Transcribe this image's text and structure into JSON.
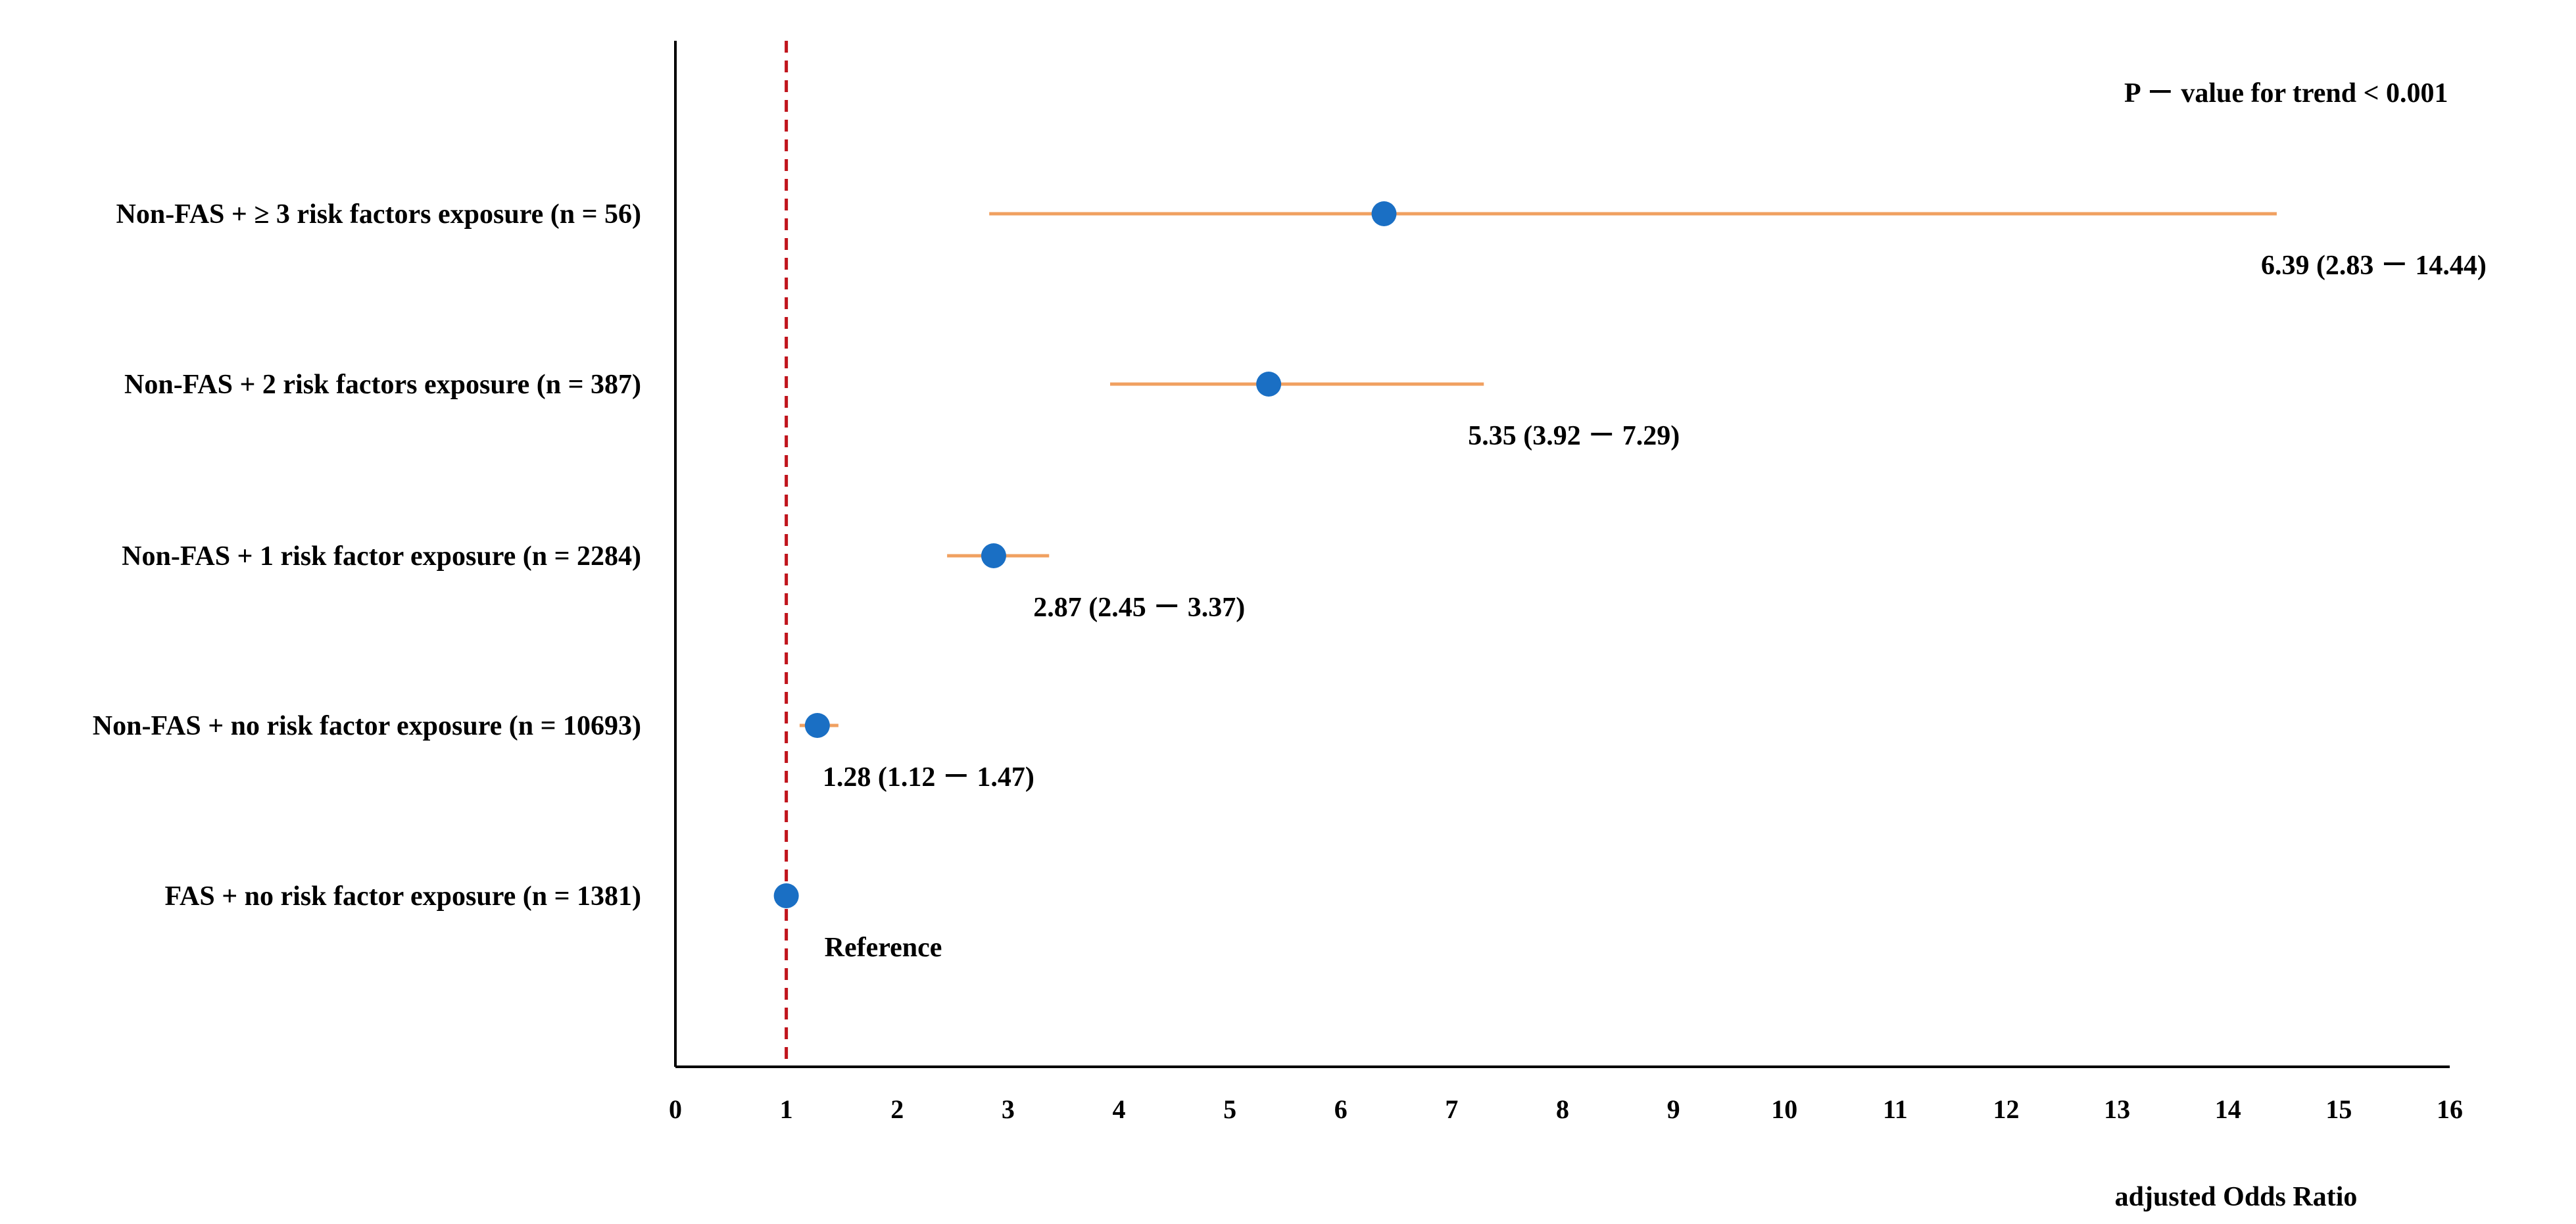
{
  "chart_data": {
    "type": "forest",
    "title": "",
    "xlabel": "adjusted Odds Ratio",
    "ylabel": "",
    "xlim": [
      0,
      16
    ],
    "xticks": [
      "0",
      "1",
      "2",
      "3",
      "4",
      "5",
      "6",
      "7",
      "8",
      "9",
      "10",
      "11",
      "12",
      "13",
      "14",
      "15",
      "16"
    ],
    "reference_line": 1,
    "reference_line_style": "dashed",
    "grid": false,
    "annotation": "P － value for trend < 0.001",
    "colors": {
      "point": "#1a6fc4",
      "ci": "#f0a060",
      "reference": "#c0141c",
      "axis": "#000000"
    },
    "rows": [
      {
        "label": "Non-FAS + ≥ 3 risk factors exposure (n = 56)",
        "or": 6.39,
        "lower": 2.83,
        "upper": 14.44,
        "text": "6.39 (2.83 － 14.44)"
      },
      {
        "label": "Non-FAS + 2 risk factors exposure (n = 387)",
        "or": 5.35,
        "lower": 3.92,
        "upper": 7.29,
        "text": "5.35 (3.92 － 7.29)"
      },
      {
        "label": "Non-FAS + 1 risk factor exposure (n = 2284)",
        "or": 2.87,
        "lower": 2.45,
        "upper": 3.37,
        "text": "2.87 (2.45 － 3.37)"
      },
      {
        "label": "Non-FAS + no risk factor exposure (n = 10693)",
        "or": 1.28,
        "lower": 1.12,
        "upper": 1.47,
        "text": "1.28 (1.12 － 1.47)"
      },
      {
        "label": "FAS + no risk factor exposure (n = 1381)",
        "or": 1.0,
        "lower": 1.0,
        "upper": 1.0,
        "text": "Reference"
      }
    ]
  }
}
